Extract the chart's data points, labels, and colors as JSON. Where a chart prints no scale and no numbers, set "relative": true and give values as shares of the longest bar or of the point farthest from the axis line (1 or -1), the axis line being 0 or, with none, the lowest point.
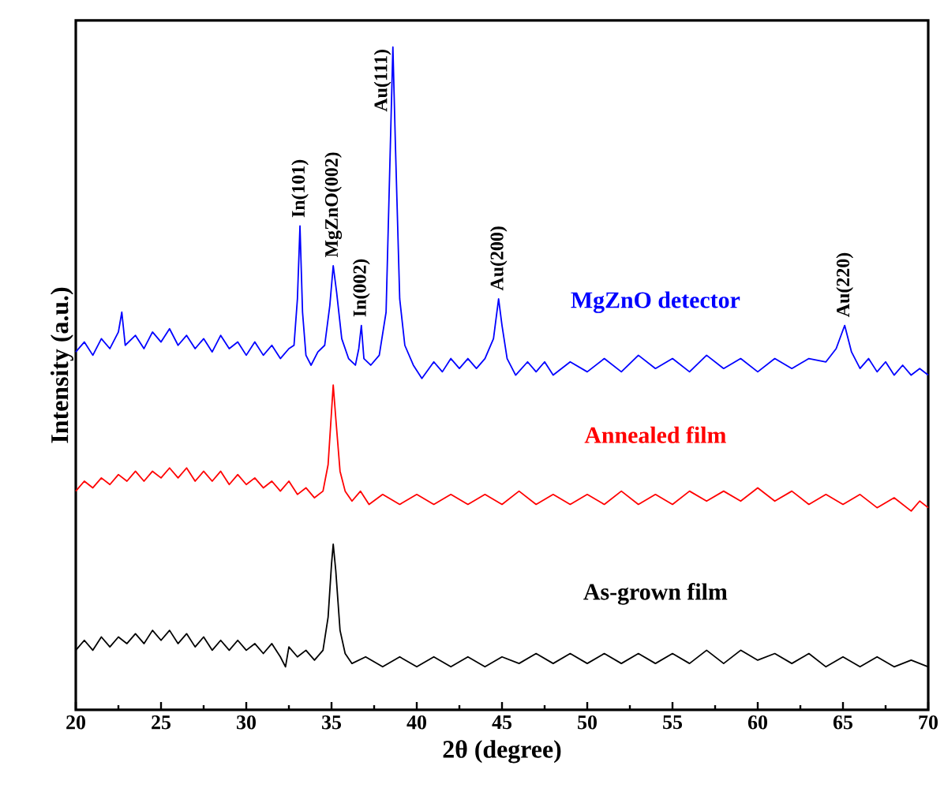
{
  "chart_data": {
    "type": "line",
    "xlabel": "2θ (degree)",
    "ylabel": "Intensity (a.u.)",
    "relative": true,
    "xlim": [
      20,
      70
    ],
    "xticks": [
      20,
      25,
      30,
      35,
      40,
      45,
      50,
      55,
      60,
      65,
      70
    ],
    "series": [
      {
        "name": "MgZnO detector",
        "color": "#0000ff",
        "x": [
          20,
          20.5,
          21,
          21.5,
          22,
          22.5,
          22.7,
          22.9,
          23.5,
          24,
          24.5,
          25,
          25.5,
          26,
          26.5,
          27,
          27.5,
          28,
          28.5,
          29,
          29.5,
          30,
          30.5,
          31,
          31.5,
          32,
          32.5,
          32.8,
          33.0,
          33.15,
          33.3,
          33.5,
          33.8,
          34.2,
          34.6,
          34.9,
          35.1,
          35.3,
          35.6,
          36,
          36.4,
          36.6,
          36.75,
          36.9,
          37.3,
          37.8,
          38.2,
          38.45,
          38.6,
          38.75,
          39,
          39.3,
          39.8,
          40.3,
          41,
          41.5,
          42,
          42.5,
          43,
          43.5,
          44,
          44.5,
          44.8,
          45.0,
          45.3,
          45.8,
          46.5,
          47,
          47.5,
          48,
          49,
          50,
          51,
          52,
          53,
          54,
          55,
          56,
          57,
          58,
          59,
          60,
          61,
          62,
          63,
          64,
          64.6,
          65.1,
          65.5,
          66,
          66.5,
          67,
          67.5,
          68,
          68.5,
          69,
          69.5,
          70
        ],
        "values": [
          0.54,
          0.555,
          0.535,
          0.56,
          0.545,
          0.57,
          0.6,
          0.55,
          0.565,
          0.545,
          0.57,
          0.555,
          0.575,
          0.55,
          0.565,
          0.545,
          0.56,
          0.54,
          0.565,
          0.545,
          0.555,
          0.535,
          0.555,
          0.535,
          0.55,
          0.53,
          0.545,
          0.55,
          0.62,
          0.73,
          0.6,
          0.535,
          0.52,
          0.54,
          0.55,
          0.61,
          0.67,
          0.63,
          0.56,
          0.53,
          0.52,
          0.545,
          0.58,
          0.53,
          0.52,
          0.535,
          0.6,
          0.85,
          1.0,
          0.85,
          0.62,
          0.55,
          0.52,
          0.5,
          0.525,
          0.51,
          0.53,
          0.515,
          0.53,
          0.515,
          0.53,
          0.56,
          0.62,
          0.58,
          0.53,
          0.505,
          0.525,
          0.51,
          0.525,
          0.505,
          0.525,
          0.51,
          0.53,
          0.51,
          0.535,
          0.515,
          0.53,
          0.51,
          0.535,
          0.515,
          0.53,
          0.51,
          0.53,
          0.515,
          0.53,
          0.525,
          0.545,
          0.58,
          0.54,
          0.515,
          0.53,
          0.51,
          0.525,
          0.505,
          0.52,
          0.505,
          0.515,
          0.505
        ]
      },
      {
        "name": "Annealed film",
        "color": "#ff0000",
        "x": [
          20,
          20.5,
          21,
          21.5,
          22,
          22.5,
          23,
          23.5,
          24,
          24.5,
          25,
          25.5,
          26,
          26.5,
          27,
          27.5,
          28,
          28.5,
          29,
          29.5,
          30,
          30.5,
          31,
          31.5,
          32,
          32.5,
          33,
          33.5,
          34,
          34.5,
          34.8,
          35.0,
          35.1,
          35.25,
          35.5,
          35.8,
          36.2,
          36.7,
          37.2,
          38,
          39,
          40,
          41,
          42,
          43,
          44,
          45,
          46,
          47,
          48,
          49,
          50,
          51,
          52,
          53,
          54,
          55,
          56,
          57,
          58,
          59,
          60,
          61,
          62,
          63,
          64,
          65,
          66,
          67,
          68,
          69,
          69.5,
          70
        ],
        "values": [
          0.33,
          0.345,
          0.335,
          0.35,
          0.34,
          0.355,
          0.345,
          0.36,
          0.345,
          0.36,
          0.35,
          0.365,
          0.35,
          0.365,
          0.345,
          0.36,
          0.345,
          0.36,
          0.34,
          0.355,
          0.34,
          0.35,
          0.335,
          0.345,
          0.33,
          0.345,
          0.325,
          0.335,
          0.32,
          0.33,
          0.37,
          0.45,
          0.49,
          0.44,
          0.36,
          0.33,
          0.315,
          0.33,
          0.31,
          0.325,
          0.31,
          0.325,
          0.31,
          0.325,
          0.31,
          0.325,
          0.31,
          0.33,
          0.31,
          0.325,
          0.31,
          0.325,
          0.31,
          0.33,
          0.31,
          0.325,
          0.31,
          0.33,
          0.315,
          0.33,
          0.315,
          0.335,
          0.315,
          0.33,
          0.31,
          0.325,
          0.31,
          0.325,
          0.305,
          0.32,
          0.3,
          0.315,
          0.305
        ]
      },
      {
        "name": "As-grown film",
        "color": "#000000",
        "x": [
          20,
          20.5,
          21,
          21.5,
          22,
          22.5,
          23,
          23.5,
          24,
          24.5,
          25,
          25.5,
          26,
          26.5,
          27,
          27.5,
          28,
          28.5,
          29,
          29.5,
          30,
          30.5,
          31,
          31.5,
          32,
          32.3,
          32.5,
          33,
          33.5,
          34,
          34.5,
          34.8,
          35.0,
          35.1,
          35.25,
          35.5,
          35.8,
          36.2,
          37,
          38,
          39,
          40,
          41,
          42,
          43,
          44,
          45,
          46,
          47,
          48,
          49,
          50,
          51,
          52,
          53,
          54,
          55,
          56,
          57,
          58,
          59,
          60,
          61,
          62,
          63,
          64,
          65,
          66,
          67,
          68,
          69,
          70
        ],
        "values": [
          0.09,
          0.105,
          0.09,
          0.11,
          0.095,
          0.11,
          0.1,
          0.115,
          0.1,
          0.12,
          0.105,
          0.12,
          0.1,
          0.115,
          0.095,
          0.11,
          0.09,
          0.105,
          0.09,
          0.105,
          0.09,
          0.1,
          0.085,
          0.1,
          0.08,
          0.065,
          0.095,
          0.08,
          0.09,
          0.075,
          0.09,
          0.14,
          0.22,
          0.25,
          0.21,
          0.12,
          0.085,
          0.07,
          0.08,
          0.065,
          0.08,
          0.065,
          0.08,
          0.065,
          0.08,
          0.065,
          0.08,
          0.07,
          0.085,
          0.07,
          0.085,
          0.07,
          0.085,
          0.07,
          0.085,
          0.07,
          0.085,
          0.07,
          0.09,
          0.07,
          0.09,
          0.075,
          0.085,
          0.07,
          0.085,
          0.065,
          0.08,
          0.065,
          0.08,
          0.065,
          0.075,
          0.065
        ]
      }
    ],
    "annotations": [
      {
        "text": "In(101)",
        "x": 33.15,
        "y": 0.73
      },
      {
        "text": "MgZnO(002)",
        "x": 35.1,
        "y": 0.67
      },
      {
        "text": "In(002)",
        "x": 36.75,
        "y": 0.58
      },
      {
        "text": "Au(111)",
        "x": 38.6,
        "y": 1.0
      },
      {
        "text": "Au(200)",
        "x": 44.8,
        "y": 0.62
      },
      {
        "text": "Au(220)",
        "x": 65.1,
        "y": 0.58
      }
    ]
  }
}
